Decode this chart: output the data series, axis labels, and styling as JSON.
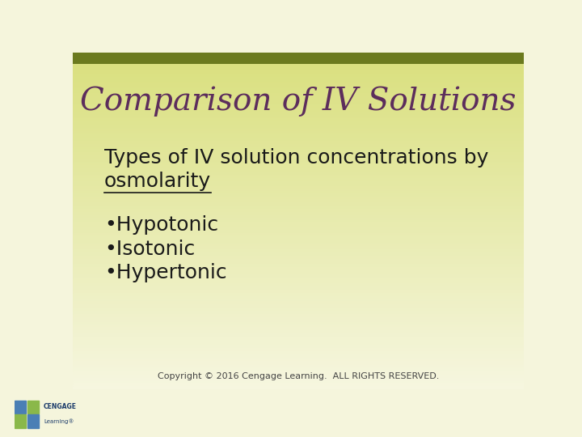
{
  "title": "Comparison of IV Solutions",
  "title_color": "#5c2d5c",
  "title_fontsize": 28,
  "body_text_line1": "Types of IV solution concentrations by",
  "body_text_line2": "osmolarity",
  "body_fontsize": 18,
  "body_color": "#1a1a1a",
  "bullets": [
    "•Hypotonic",
    "•Isotonic",
    "•Hypertonic"
  ],
  "bullet_fontsize": 18,
  "bullet_color": "#1a1a1a",
  "bg_top_color": "#6b7a1e",
  "bg_top_light": "#d4de7a",
  "bg_bottom_color": "#f5f5dc",
  "top_bar_height": 0.035,
  "copyright_text": "Copyright © 2016 Cengage Learning.  ALL RIGHTS RESERVED.",
  "copyright_fontsize": 8,
  "copyright_color": "#444444"
}
